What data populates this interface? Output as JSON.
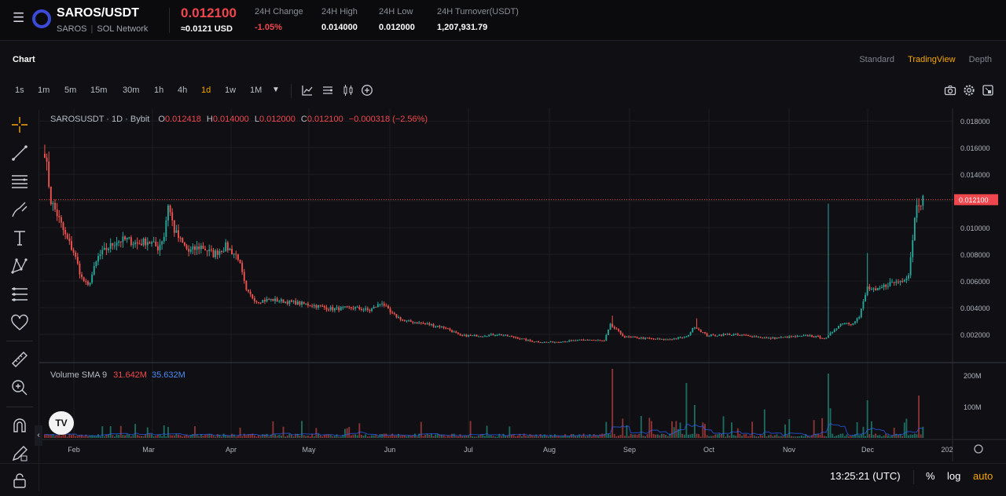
{
  "header": {
    "pair": "SAROS/USDT",
    "token": "SAROS",
    "network": "SOL Network",
    "last_price": "0.012100",
    "usd_price": "≈0.0121 USD",
    "stats": [
      {
        "label": "24H Change",
        "value": "-1.05%"
      },
      {
        "label": "24H High",
        "value": "0.014000"
      },
      {
        "label": "24H Low",
        "value": "0.012000"
      },
      {
        "label": "24H Turnover(USDT)",
        "value": "1,207,931.79"
      }
    ]
  },
  "chart_header": {
    "title": "Chart",
    "views": [
      "Standard",
      "TradingView",
      "Depth"
    ],
    "active_view": "TradingView"
  },
  "timeframes": [
    "1s",
    "1m",
    "5m",
    "15m",
    "30m",
    "1h",
    "4h",
    "1d",
    "1w",
    "1M"
  ],
  "active_timeframe": "1d",
  "legend": {
    "symbol": "SAROSUSDT · 1D · Bybit",
    "open_label": "O",
    "open": "0.012418",
    "high_label": "H",
    "high": "0.014000",
    "low_label": "L",
    "low": "0.012000",
    "close_label": "C",
    "close": "0.012100",
    "change": "−0.000318 (−2.56%)"
  },
  "volume_legend": {
    "label": "Volume SMA 9",
    "v1": "31.642M",
    "v2": "35.632M"
  },
  "tv_logo": "TV",
  "current_price_tag": "0.012100",
  "colors": {
    "up": "#26a69a",
    "down": "#ef5350",
    "accent": "#f7a600",
    "price_tag": "#f0464d"
  },
  "chart_data": {
    "type": "candlestick",
    "price_axis_ticks": [
      "0.018000",
      "0.016000",
      "0.014000",
      "0.012000",
      "0.010000",
      "0.008000",
      "0.006000",
      "0.004000",
      "0.002000"
    ],
    "price_range": [
      0.0,
      0.0186
    ],
    "volume_axis_ticks": [
      "200M",
      "100M"
    ],
    "volume_range": [
      0,
      230
    ],
    "time_axis_labels": [
      "Feb",
      "Mar",
      "Apr",
      "May",
      "Jun",
      "Jul",
      "Aug",
      "Sep",
      "Oct",
      "Nov",
      "Dec",
      "202"
    ],
    "price_anchors": [
      [
        0,
        0.0158
      ],
      [
        3,
        0.012
      ],
      [
        6,
        0.011
      ],
      [
        10,
        0.0094
      ],
      [
        14,
        0.0082
      ],
      [
        18,
        0.0062
      ],
      [
        21,
        0.0056
      ],
      [
        26,
        0.0078
      ],
      [
        30,
        0.0084
      ],
      [
        35,
        0.009
      ],
      [
        40,
        0.0091
      ],
      [
        45,
        0.0088
      ],
      [
        50,
        0.009
      ],
      [
        55,
        0.0085
      ],
      [
        58,
        0.0094
      ],
      [
        60,
        0.0118
      ],
      [
        63,
        0.0098
      ],
      [
        66,
        0.009
      ],
      [
        70,
        0.0082
      ],
      [
        76,
        0.0086
      ],
      [
        82,
        0.008
      ],
      [
        88,
        0.0086
      ],
      [
        94,
        0.0078
      ],
      [
        98,
        0.0052
      ],
      [
        103,
        0.0045
      ],
      [
        110,
        0.0046
      ],
      [
        120,
        0.0044
      ],
      [
        130,
        0.0042
      ],
      [
        140,
        0.0039
      ],
      [
        150,
        0.004
      ],
      [
        158,
        0.0038
      ],
      [
        164,
        0.0044
      ],
      [
        168,
        0.0036
      ],
      [
        175,
        0.003
      ],
      [
        185,
        0.0028
      ],
      [
        195,
        0.0025
      ],
      [
        202,
        0.0019
      ],
      [
        212,
        0.0019
      ],
      [
        220,
        0.002
      ],
      [
        228,
        0.0018
      ],
      [
        236,
        0.0015
      ],
      [
        244,
        0.0014
      ],
      [
        255,
        0.0015
      ],
      [
        265,
        0.0016
      ],
      [
        272,
        0.0015
      ],
      [
        275,
        0.0027
      ],
      [
        282,
        0.0018
      ],
      [
        292,
        0.0017
      ],
      [
        302,
        0.0016
      ],
      [
        312,
        0.0018
      ],
      [
        316,
        0.0026
      ],
      [
        322,
        0.0019
      ],
      [
        332,
        0.002
      ],
      [
        342,
        0.0019
      ],
      [
        352,
        0.0017
      ],
      [
        362,
        0.0018
      ],
      [
        372,
        0.0019
      ],
      [
        380,
        0.0017
      ],
      [
        384,
        0.0024
      ],
      [
        388,
        0.0029
      ],
      [
        392,
        0.0028
      ],
      [
        396,
        0.0033
      ],
      [
        400,
        0.0055
      ],
      [
        404,
        0.0052
      ],
      [
        410,
        0.0058
      ],
      [
        416,
        0.006
      ],
      [
        420,
        0.0065
      ],
      [
        424,
        0.012
      ],
      [
        427,
        0.0121
      ]
    ],
    "spike_candles": [
      [
        381,
        0.0118
      ],
      [
        276,
        0.0034
      ],
      [
        317,
        0.0032
      ],
      [
        400,
        0.0081
      ]
    ],
    "volume_spikes": [
      [
        276,
        220
      ],
      [
        312,
        175
      ],
      [
        381,
        205
      ],
      [
        400,
        120
      ],
      [
        425,
        135
      ],
      [
        316,
        105
      ],
      [
        290,
        70
      ],
      [
        60,
        35
      ]
    ],
    "last_close": 0.0121
  }
}
